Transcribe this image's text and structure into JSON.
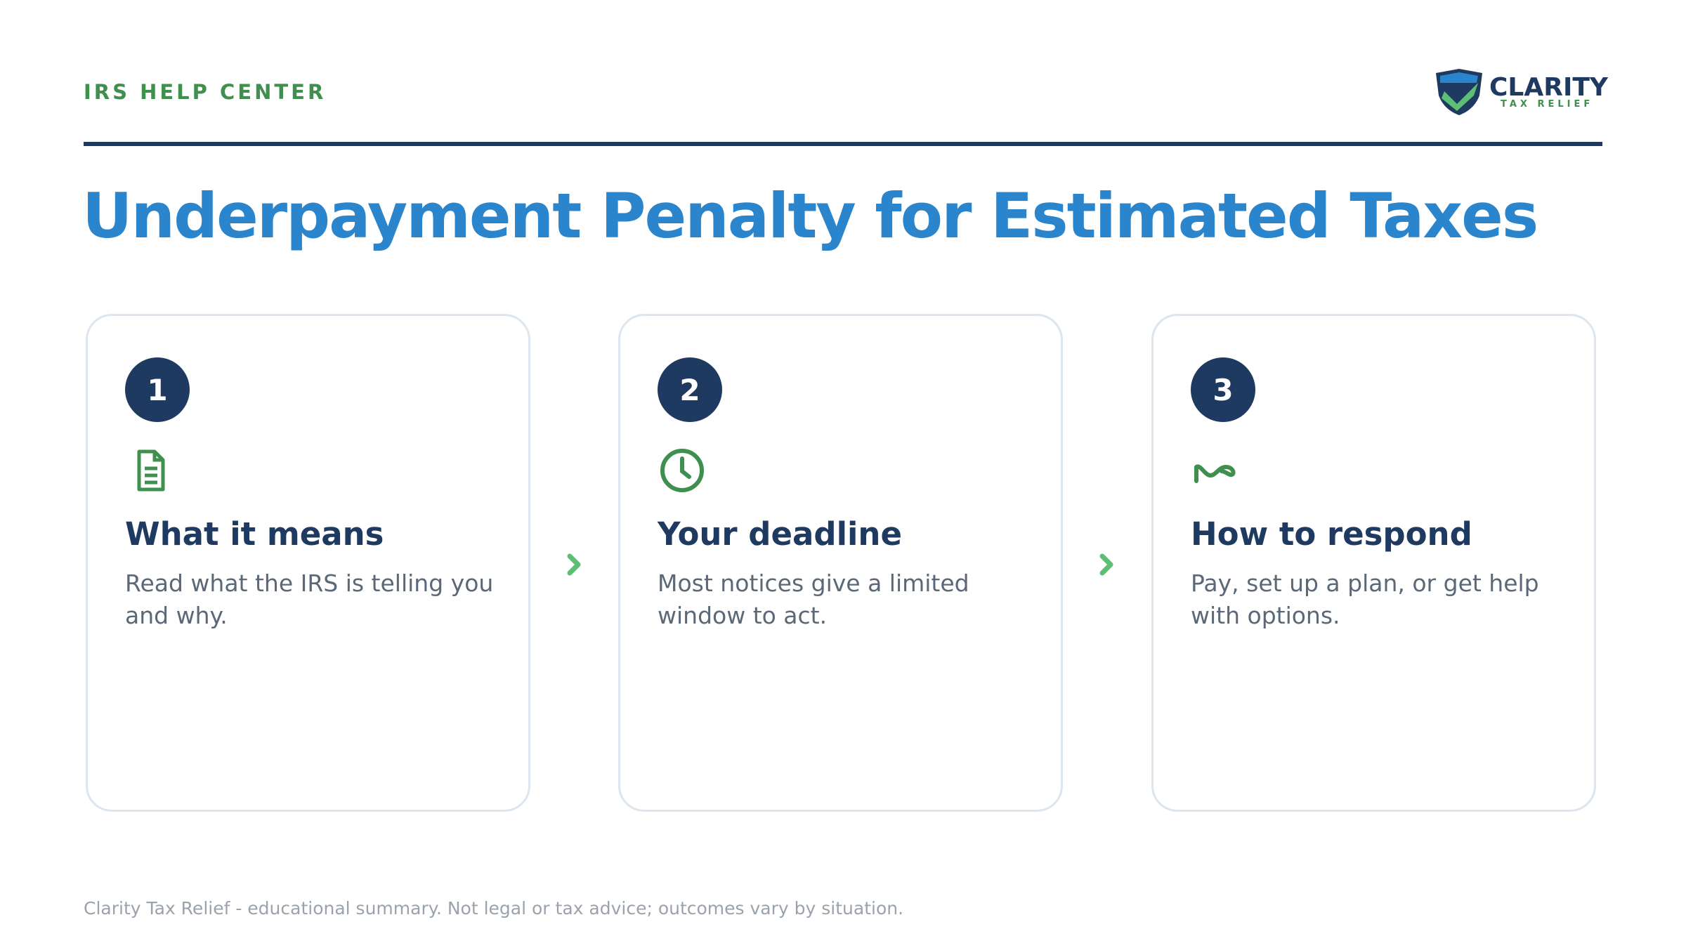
{
  "header": {
    "label": "IRS HELP CENTER",
    "logo": {
      "name": "CLARITY",
      "tagline": "TAX RELIEF"
    }
  },
  "title": "Underpayment Penalty for Estimated Taxes",
  "steps": [
    {
      "number": 1,
      "heading": "What it means",
      "body": "Read what the IRS is telling you and why."
    },
    {
      "number": 2,
      "heading": "Your deadline",
      "body": "Most notices give a limited window to act."
    },
    {
      "number": 3,
      "heading": "How to respond",
      "body": "Pay, set up a plan, or get help with options."
    }
  ],
  "footer": "Clarity Tax Relief - educational summary. Not legal or tax advice; outcomes vary by situation."
}
